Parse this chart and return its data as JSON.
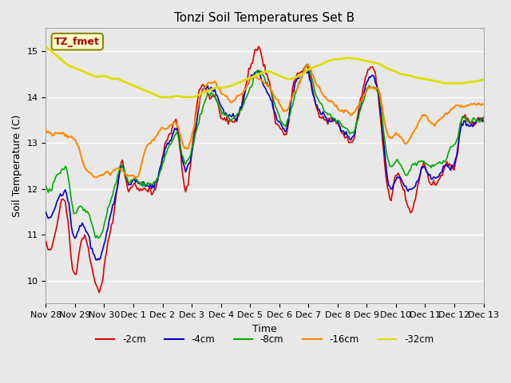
{
  "title": "Tonzi Soil Temperatures Set B",
  "xlabel": "Time",
  "ylabel": "Soil Temperature (C)",
  "ylim": [
    9.5,
    15.5
  ],
  "background_color": "#e8e8e8",
  "plot_bg_color": "#e8e8e8",
  "grid_color": "#ffffff",
  "legend_label": "TZ_fmet",
  "series": {
    "neg2cm": {
      "color": "#dd0000",
      "label": "-2cm"
    },
    "neg4cm": {
      "color": "#0000cc",
      "label": "-4cm"
    },
    "neg8cm": {
      "color": "#00aa00",
      "label": "-8cm"
    },
    "neg16cm": {
      "color": "#ff8800",
      "label": "-16cm"
    },
    "neg32cm": {
      "color": "#dddd00",
      "label": "-32cm"
    }
  },
  "xtick_labels": [
    "Nov 28",
    "Nov 29",
    "Nov 30",
    "Dec 1",
    "Dec 2",
    "Dec 3",
    "Dec 4",
    "Dec 5",
    "Dec 6",
    "Dec 7",
    "Dec 8",
    "Dec 9",
    "Dec 10",
    "Dec 11",
    "Dec 12",
    "Dec 13"
  ],
  "n_points": 361
}
